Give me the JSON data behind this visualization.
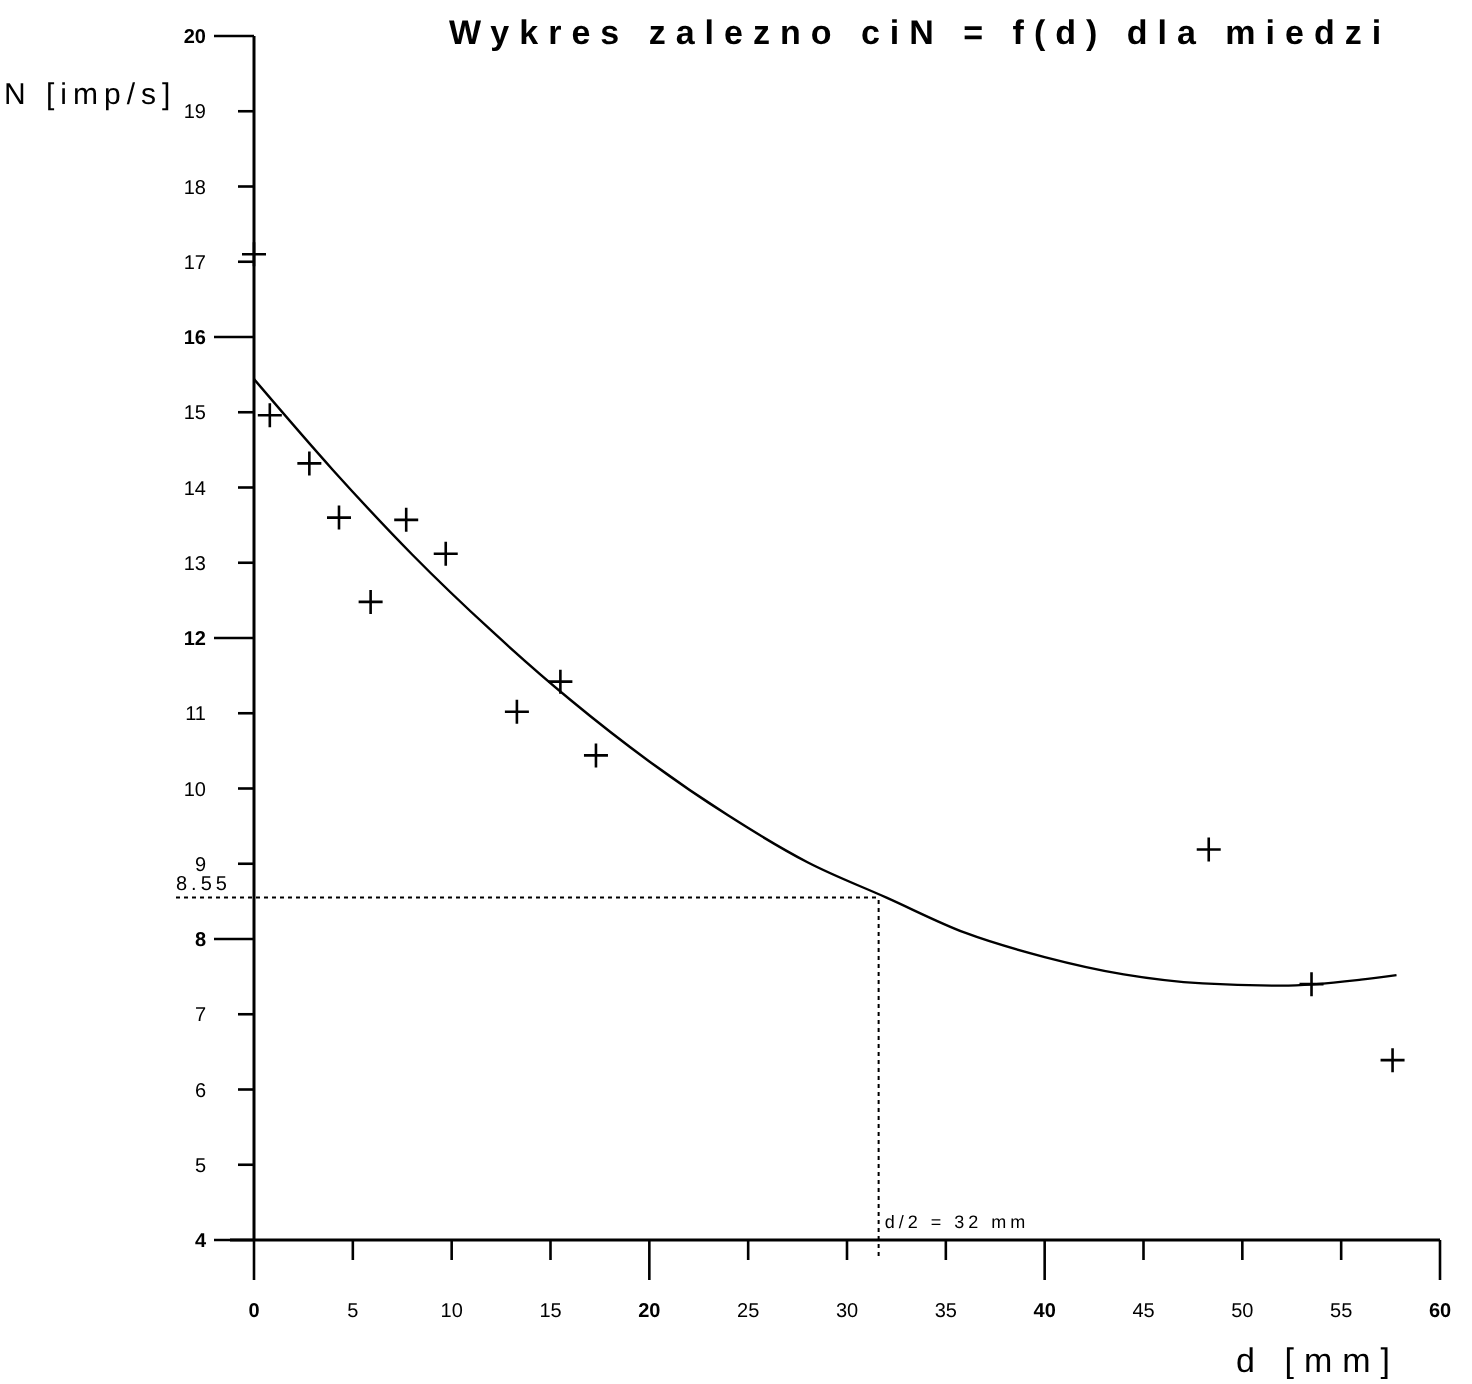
{
  "chart_data": {
    "type": "scatter",
    "title": "Wykres zalezno ciN = f(d) dla miedzi",
    "xlabel": "d [mm]",
    "ylabel": "N [imp/s]",
    "xlim": [
      0,
      60
    ],
    "ylim": [
      4,
      20
    ],
    "xticks": [
      0,
      5,
      10,
      15,
      20,
      25,
      30,
      35,
      40,
      45,
      50,
      55,
      60
    ],
    "yticks": [
      4,
      5,
      6,
      7,
      8,
      9,
      10,
      11,
      12,
      13,
      14,
      15,
      16,
      17,
      18,
      19,
      20
    ],
    "grid": false,
    "series": [
      {
        "marker": "cross",
        "color": "#000000",
        "x": [
          0,
          0.8,
          2.8,
          4.3,
          5.9,
          7.7,
          9.7,
          13.3,
          15.5,
          17.3,
          48.3,
          53.5,
          57.6
        ],
        "values": [
          17.1,
          14.96,
          14.32,
          13.6,
          12.48,
          13.57,
          13.12,
          11.02,
          11.42,
          10.44,
          9.19,
          7.4,
          6.39
        ]
      },
      {
        "type": "line",
        "marker": "none",
        "line_style": "solid",
        "color": "#000000",
        "x": [
          0,
          4,
          8,
          12,
          16,
          20,
          24,
          28,
          32,
          36,
          40,
          44,
          48,
          52,
          56,
          57.8
        ],
        "values": [
          15.44,
          14.23,
          13.11,
          12.1,
          11.18,
          10.36,
          9.64,
          9.02,
          8.55,
          8.08,
          7.76,
          7.53,
          7.41,
          7.38,
          7.46,
          7.52
        ]
      }
    ],
    "ref_lines": [
      {
        "axis": "y",
        "value": 8.55,
        "label": "8.55",
        "line_style": "dotted",
        "color": "#000000"
      },
      {
        "axis": "x",
        "value": 31.6,
        "label": "d/2 = 32 mm",
        "line_style": "dotted",
        "color": "#000000"
      }
    ]
  }
}
